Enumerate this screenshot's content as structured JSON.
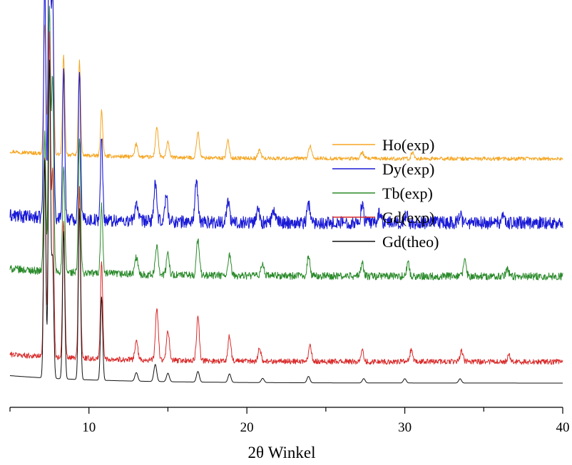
{
  "chart_data": {
    "type": "line",
    "title": "",
    "xlabel": "2θ Winkel",
    "ylabel": "",
    "xlim": [
      5,
      40
    ],
    "x_ticks": [
      10,
      20,
      30,
      40
    ],
    "y_ticks_shown": false,
    "legend_position": "right",
    "series": [
      {
        "name": "Ho(exp)",
        "color": "#f5a623",
        "baseline": 10.5,
        "noise": 0.18,
        "peaks": [
          [
            7.2,
            6.1
          ],
          [
            7.5,
            12.6
          ],
          [
            7.7,
            7.8
          ],
          [
            8.4,
            4.6
          ],
          [
            9.4,
            4.4
          ],
          [
            10.8,
            2.1
          ],
          [
            13.0,
            0.6
          ],
          [
            14.3,
            1.4
          ],
          [
            15.0,
            0.7
          ],
          [
            16.9,
            1.2
          ],
          [
            18.8,
            0.8
          ],
          [
            20.8,
            0.4
          ],
          [
            24.0,
            0.6
          ],
          [
            27.3,
            0.3
          ],
          [
            30.5,
            0.3
          ]
        ]
      },
      {
        "name": "Dy(exp)",
        "color": "#1a1ad6",
        "baseline": 7.5,
        "noise": 0.6,
        "peaks": [
          [
            7.2,
            11.2
          ],
          [
            7.5,
            17.5
          ],
          [
            7.7,
            10.8
          ],
          [
            8.4,
            6.9
          ],
          [
            9.4,
            7.1
          ],
          [
            10.8,
            3.8
          ],
          [
            13.0,
            0.9
          ],
          [
            14.2,
            1.7
          ],
          [
            14.9,
            1.2
          ],
          [
            16.8,
            1.9
          ],
          [
            18.8,
            1.0
          ],
          [
            20.7,
            0.7
          ],
          [
            21.7,
            0.6
          ],
          [
            23.9,
            0.9
          ],
          [
            27.3,
            0.8
          ],
          [
            28.4,
            0.5
          ],
          [
            30.1,
            0.4
          ],
          [
            33.5,
            0.4
          ],
          [
            36.2,
            0.3
          ]
        ]
      },
      {
        "name": "Tb(exp)",
        "color": "#2a8a2a",
        "baseline": 5.0,
        "noise": 0.35,
        "peaks": [
          [
            7.2,
            6.4
          ],
          [
            7.5,
            12.2
          ],
          [
            7.7,
            9.0
          ],
          [
            8.4,
            4.9
          ],
          [
            9.4,
            6.3
          ],
          [
            10.8,
            3.2
          ],
          [
            13.0,
            0.8
          ],
          [
            14.3,
            1.4
          ],
          [
            15.0,
            1.0
          ],
          [
            16.9,
            1.7
          ],
          [
            18.9,
            0.9
          ],
          [
            21.0,
            0.6
          ],
          [
            23.9,
            0.9
          ],
          [
            27.3,
            0.6
          ],
          [
            30.2,
            0.6
          ],
          [
            33.8,
            0.7
          ],
          [
            36.5,
            0.3
          ]
        ]
      },
      {
        "name": "Gd(exp)",
        "color": "#d92b2b",
        "baseline": 1.0,
        "noise": 0.25,
        "peaks": [
          [
            7.2,
            9.3
          ],
          [
            7.5,
            15.2
          ],
          [
            7.7,
            8.6
          ],
          [
            8.4,
            6.4
          ],
          [
            9.4,
            8.0
          ],
          [
            10.8,
            4.6
          ],
          [
            13.0,
            0.9
          ],
          [
            14.3,
            2.4
          ],
          [
            15.0,
            1.4
          ],
          [
            16.9,
            2.0
          ],
          [
            18.9,
            1.2
          ],
          [
            20.8,
            0.6
          ],
          [
            24.0,
            0.8
          ],
          [
            27.3,
            0.5
          ],
          [
            30.4,
            0.5
          ],
          [
            33.6,
            0.5
          ],
          [
            36.6,
            0.3
          ]
        ]
      },
      {
        "name": "Gd(theo)",
        "color": "#111111",
        "baseline": 0.0,
        "noise": 0.0,
        "peaks": [
          [
            7.2,
            10.2
          ],
          [
            7.5,
            14.8
          ],
          [
            7.7,
            5.5
          ],
          [
            8.4,
            6.9
          ],
          [
            9.4,
            8.0
          ],
          [
            10.8,
            3.9
          ],
          [
            13.0,
            0.4
          ],
          [
            14.2,
            0.8
          ],
          [
            15.0,
            0.4
          ],
          [
            16.9,
            0.5
          ],
          [
            18.9,
            0.4
          ],
          [
            21.0,
            0.2
          ],
          [
            23.9,
            0.3
          ],
          [
            27.4,
            0.2
          ],
          [
            30.0,
            0.2
          ],
          [
            33.5,
            0.2
          ]
        ]
      }
    ]
  }
}
